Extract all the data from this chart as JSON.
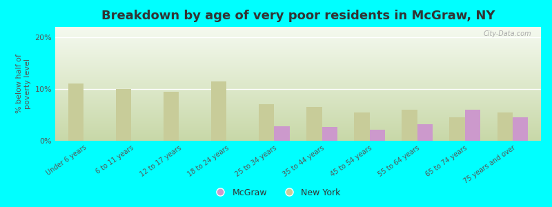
{
  "title": "Breakdown by age of very poor residents in McGraw, NY",
  "ylabel": "% below half of\npoverty level",
  "categories": [
    "Under 6 years",
    "6 to 11 years",
    "12 to 17 years",
    "18 to 24 years",
    "25 to 34 years",
    "35 to 44 years",
    "45 to 54 years",
    "55 to 64 years",
    "65 to 74 years",
    "75 years and over"
  ],
  "mcgraw_values": [
    0,
    0,
    0,
    0,
    2.8,
    2.7,
    2.2,
    3.2,
    6.0,
    4.5
  ],
  "newyork_values": [
    11.0,
    10.0,
    9.5,
    11.5,
    7.0,
    6.5,
    5.5,
    6.0,
    4.5,
    5.5
  ],
  "mcgraw_color": "#cc99cc",
  "newyork_color": "#c8cc99",
  "background_color": "#00ffff",
  "plot_bg_top": "#c8d8a8",
  "plot_bg_bottom": "#f5faf0",
  "ylim": [
    0,
    22
  ],
  "yticks": [
    0,
    10,
    20
  ],
  "ytick_labels": [
    "0%",
    "10%",
    "20%"
  ],
  "bar_width": 0.32,
  "title_fontsize": 13,
  "axis_fontsize": 8,
  "legend_labels": [
    "McGraw",
    "New York"
  ],
  "watermark": "City-Data.com"
}
